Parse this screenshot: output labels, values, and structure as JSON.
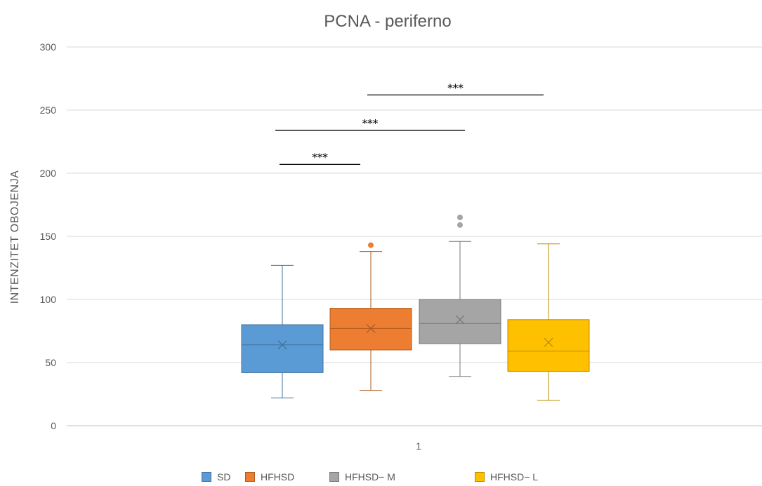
{
  "chart_data": {
    "type": "box",
    "title": "PCNA - periferno",
    "ylabel": "INTENZITET OBOJENJA",
    "xlabel": "",
    "category": "1",
    "ylim": [
      0,
      300
    ],
    "yticks": [
      0,
      50,
      100,
      150,
      200,
      250,
      300
    ],
    "grid": true,
    "legend_position": "bottom",
    "series": [
      {
        "name": "SD",
        "color": "#5b9bd5",
        "stroke": "#41719c",
        "min": 22,
        "q1": 42,
        "median": 64,
        "mean": 64,
        "q3": 80,
        "max": 127,
        "outliers": []
      },
      {
        "name": "HFHSD",
        "color": "#ed7d31",
        "stroke": "#ae5a21",
        "min": 28,
        "q1": 60,
        "median": 77,
        "mean": 77,
        "q3": 93,
        "max": 138,
        "outliers": [
          143
        ]
      },
      {
        "name": "HFHSD− M",
        "color": "#a5a5a5",
        "stroke": "#787878",
        "min": 39,
        "q1": 65,
        "median": 81,
        "mean": 84,
        "q3": 100,
        "max": 146,
        "outliers": [
          159,
          165
        ]
      },
      {
        "name": "HFHSD− L",
        "color": "#ffc000",
        "stroke": "#bc8c00",
        "min": 20,
        "q1": 43,
        "median": 59,
        "mean": 66,
        "q3": 84,
        "max": 144,
        "outliers": []
      }
    ],
    "annotations": [
      {
        "label": "***",
        "from": "SD",
        "to": "HFHSD",
        "y": 207
      },
      {
        "label": "***",
        "from": "SD",
        "to": "HFHSD− M",
        "y": 234
      },
      {
        "label": "***",
        "from": "HFHSD",
        "to": "HFHSD− L",
        "y": 262
      }
    ]
  }
}
